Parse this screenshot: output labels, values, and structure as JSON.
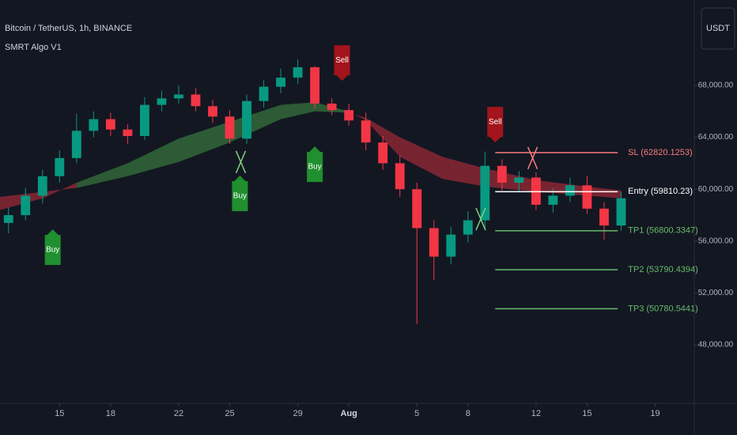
{
  "chart_data": {
    "type": "candlestick",
    "title": "Bitcoin / TetherUS, 1h, BINANCE",
    "indicator": "SMRT Algo V1",
    "currency": "USDT",
    "x": [
      12,
      13,
      14,
      15,
      16,
      17,
      18,
      19,
      20,
      21,
      22,
      23,
      24,
      25,
      26,
      27,
      28,
      29,
      30,
      31,
      32,
      33,
      34,
      35,
      36,
      37,
      38,
      39,
      40,
      41,
      42,
      43,
      44,
      45,
      46,
      47,
      48
    ],
    "open": [
      57400,
      58000,
      59500,
      61000,
      62400,
      64500,
      65400,
      64600,
      64100,
      66500,
      67000,
      67300,
      66400,
      65600,
      63900,
      66800,
      67900,
      68600,
      69400,
      66600,
      66100,
      65300,
      63600,
      62000,
      60000,
      57000,
      54800,
      56500,
      57600,
      61800,
      60500,
      60900,
      58800,
      59500,
      60300,
      58500,
      57200
    ],
    "high": [
      58600,
      60100,
      61500,
      63000,
      65800,
      66000,
      65900,
      65000,
      67100,
      67600,
      68000,
      67800,
      66900,
      66100,
      67300,
      68400,
      69300,
      70000,
      69500,
      67000,
      66600,
      65900,
      64100,
      62600,
      60500,
      57600,
      57100,
      58300,
      62900,
      62300,
      61400,
      61300,
      60100,
      60900,
      61000,
      59000,
      59800
    ],
    "low": [
      56600,
      57600,
      58900,
      60500,
      62000,
      64000,
      64100,
      63500,
      63800,
      66000,
      66600,
      66000,
      65100,
      63500,
      63500,
      66300,
      67400,
      68100,
      66200,
      65700,
      64900,
      63000,
      61500,
      59400,
      49600,
      53000,
      54200,
      55900,
      57000,
      59900,
      59800,
      58400,
      58200,
      59000,
      58100,
      56100,
      56800
    ],
    "close": [
      58000,
      59500,
      61000,
      62400,
      64500,
      65400,
      64600,
      64100,
      66500,
      67000,
      67300,
      66400,
      65600,
      63900,
      66800,
      67900,
      68600,
      69400,
      66600,
      66100,
      65300,
      63600,
      62000,
      60000,
      57000,
      54800,
      56500,
      57600,
      61800,
      60500,
      60900,
      58800,
      59500,
      60300,
      58500,
      57200,
      59300
    ],
    "up_color": "#089981",
    "down_color": "#f23645",
    "ribbon": {
      "x": [
        11.5,
        14,
        16,
        19,
        22,
        25,
        28,
        30,
        32,
        33,
        35,
        37.5,
        40,
        43,
        46,
        48
      ],
      "fast": [
        58400,
        59300,
        60500,
        62000,
        63900,
        65200,
        66500,
        66700,
        66000,
        65300,
        62500,
        60800,
        60200,
        59800,
        59500,
        59300
      ],
      "slow": [
        59400,
        59800,
        60100,
        61000,
        62100,
        63600,
        65400,
        66000,
        65900,
        65500,
        64000,
        62500,
        61600,
        60700,
        60200,
        59900
      ],
      "bull_color": "#4caf50",
      "bear_color": "#f23645"
    },
    "signals": [
      {
        "label": "Buy",
        "x": 14.6,
        "price": 56900,
        "color": "#1f8f2f"
      },
      {
        "label": "Buy",
        "x": 25.6,
        "price": 61050,
        "color": "#1f8f2f"
      },
      {
        "label": "Buy",
        "x": 30.0,
        "price": 63300,
        "color": "#1f8f2f"
      },
      {
        "label": "Sell",
        "x": 31.6,
        "price": 68350,
        "color": "#a3141c"
      },
      {
        "label": "Sell",
        "x": 40.6,
        "price": 63600,
        "color": "#a3141c"
      }
    ],
    "crosses": [
      {
        "x": 25.65,
        "price": 62100,
        "color": "#7ed07f"
      },
      {
        "x": 39.75,
        "price": 57700,
        "color": "#7ed07f"
      },
      {
        "x": 42.8,
        "price": 62400,
        "color": "#f77c80"
      }
    ],
    "levels": [
      {
        "label": "SL (62820.1253)",
        "value": 62820.1253,
        "color": "#f77c80"
      },
      {
        "label": "Entry (59810.23)",
        "value": 59810.23,
        "color": "#ffffff"
      },
      {
        "label": "TP1 (56800.3347)",
        "value": 56800.3347,
        "color": "#66bb6a"
      },
      {
        "label": "TP2 (53790.4394)",
        "value": 53790.4394,
        "color": "#66bb6a"
      },
      {
        "label": "TP3 (50780.5441)",
        "value": 50780.5441,
        "color": "#66bb6a"
      }
    ],
    "level_span": [
      40.6,
      47.8
    ],
    "xlim": [
      11.5,
      52.3
    ],
    "ylim": [
      43490,
      74585
    ],
    "xticks": [
      15,
      18,
      22,
      25,
      29,
      {
        "value": 32,
        "label": "Aug"
      },
      {
        "value": 36,
        "label": "5"
      },
      {
        "value": 39,
        "label": "8"
      },
      {
        "value": 43,
        "label": "12"
      },
      {
        "value": 46,
        "label": "15"
      },
      {
        "value": 50,
        "label": "19"
      }
    ],
    "yticks": [
      {
        "value": 48000,
        "label": "48,000.00"
      },
      {
        "value": 52000,
        "label": "52,000.00"
      },
      {
        "value": 56000,
        "label": "56,000.00"
      },
      {
        "value": 60000,
        "label": "60,000.00"
      },
      {
        "value": 64000,
        "label": "64,000.00"
      },
      {
        "value": 68000,
        "label": "68,000.00"
      }
    ],
    "grid": false
  }
}
